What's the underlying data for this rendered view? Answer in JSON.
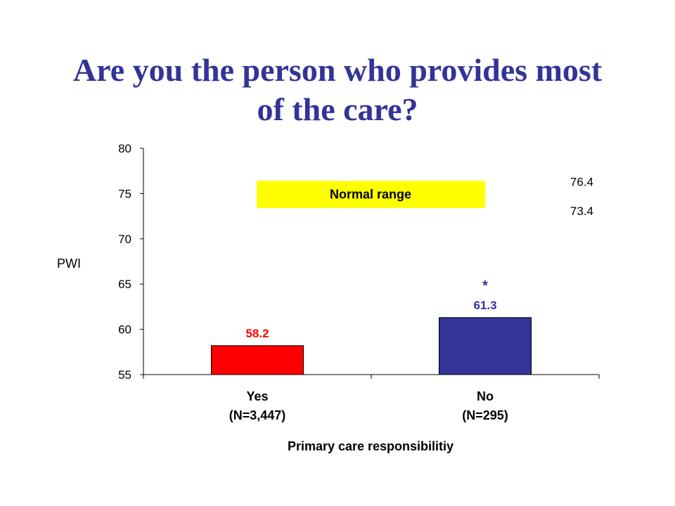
{
  "title_lines": [
    "Are you the person who provides most",
    "of the care?"
  ],
  "colors": {
    "title": "#333399",
    "bar_yes": "#ff0000",
    "bar_no": "#333399",
    "normal_band": "#ffff00"
  },
  "chart_data": {
    "type": "bar",
    "title": "Are you the person who provides most of the care?",
    "ylabel": "PWI",
    "xlabel": "Primary care responsibilitiy",
    "ylim": [
      55,
      80
    ],
    "yticks": [
      55,
      60,
      65,
      70,
      75,
      80
    ],
    "categories": [
      {
        "line1": "Yes",
        "line2": "(N=3,447)"
      },
      {
        "line1": "No",
        "line2": "(N=295)"
      }
    ],
    "values": [
      58.2,
      61.3
    ],
    "value_labels": [
      "58.2",
      "61.3"
    ],
    "significance_marker": {
      "category_index": 1,
      "text": "*"
    },
    "normal_range": {
      "label": "Normal range",
      "low": 73.4,
      "high": 76.4,
      "low_label": "73.4",
      "high_label": "76.4"
    },
    "grid": false,
    "legend": "none"
  }
}
